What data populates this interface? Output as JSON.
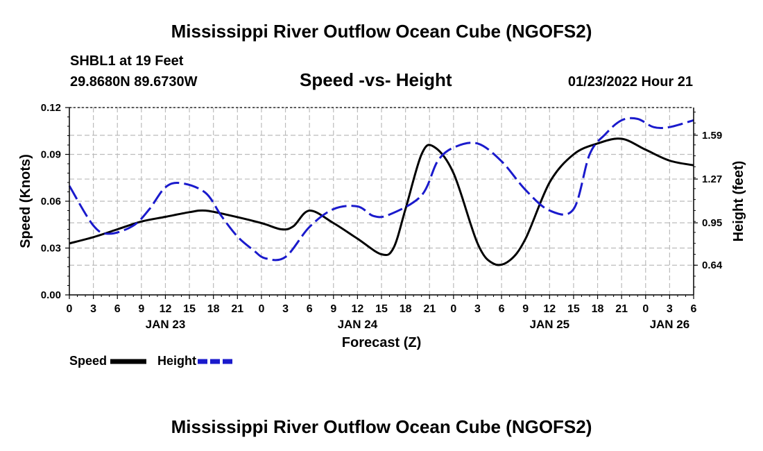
{
  "page": {
    "title_top": "Mississippi River Outflow Ocean Cube (NGOFS2)",
    "title_bottom": "Mississippi River Outflow Ocean Cube (NGOFS2)",
    "station": "SHBL1 at 19 Feet",
    "coordinates": "29.8680N  89.6730W",
    "chart_title": "Speed -vs- Height",
    "timestamp": "01/23/2022 Hour 21"
  },
  "chart_data": {
    "type": "line",
    "title": "Speed -vs- Height",
    "xlabel": "Forecast (Z)",
    "ylabel": "Speed (Knots)",
    "y2label": "Height (feet)",
    "x_hours": [
      0,
      3,
      6,
      9,
      12,
      15,
      18,
      21,
      24,
      27,
      30,
      33,
      36,
      39,
      42,
      45,
      48,
      51,
      54,
      57,
      60,
      63,
      66,
      69,
      72,
      75,
      78
    ],
    "x_tick_labels": [
      "0",
      "3",
      "6",
      "9",
      "12",
      "15",
      "18",
      "21",
      "0",
      "3",
      "6",
      "9",
      "12",
      "15",
      "18",
      "21",
      "0",
      "3",
      "6",
      "9",
      "12",
      "15",
      "18",
      "21",
      "0",
      "3",
      "6"
    ],
    "date_labels": [
      {
        "hour": 12,
        "label": "JAN 23"
      },
      {
        "hour": 36,
        "label": "JAN 24"
      },
      {
        "hour": 60,
        "label": "JAN 25"
      },
      {
        "hour": 75,
        "label": "JAN 26"
      }
    ],
    "ylim": [
      0,
      0.12
    ],
    "y_ticks": [
      0.0,
      0.03,
      0.06,
      0.09,
      0.12
    ],
    "y_tick_labels": [
      "0.00",
      "0.03",
      "0.06",
      "0.09",
      "0.12"
    ],
    "y2lim": [
      0.423,
      1.793
    ],
    "y2_ticks": [
      0.64,
      0.95,
      1.27,
      1.59
    ],
    "y2_tick_labels": [
      "0.64",
      "0.95",
      "1.27",
      "1.59"
    ],
    "grid": true,
    "series": [
      {
        "name": "Speed",
        "axis": "left",
        "color": "#000000",
        "dash": "solid",
        "x": [
          0,
          3,
          6,
          9,
          12,
          15,
          17,
          20,
          24,
          26.5,
          28,
          30,
          33,
          36,
          39,
          40.5,
          42,
          44,
          45.5,
          48,
          51,
          53,
          55,
          57,
          60,
          63,
          66,
          69,
          72,
          75,
          78
        ],
        "values": [
          0.033,
          0.037,
          0.042,
          0.047,
          0.05,
          0.053,
          0.054,
          0.051,
          0.046,
          0.042,
          0.044,
          0.054,
          0.046,
          0.036,
          0.026,
          0.03,
          0.055,
          0.09,
          0.095,
          0.078,
          0.033,
          0.02,
          0.022,
          0.036,
          0.072,
          0.09,
          0.097,
          0.1,
          0.093,
          0.086,
          0.083
        ]
      },
      {
        "name": "Height",
        "axis": "right",
        "color": "#1a1acc",
        "dash": "dashed",
        "x": [
          0,
          3,
          5,
          8,
          10,
          12,
          14,
          17,
          19,
          21,
          23,
          24.5,
          27,
          30,
          33,
          36,
          38,
          40,
          44,
          46,
          48,
          51,
          54,
          57,
          60,
          63,
          65,
          67,
          69,
          71,
          73,
          75,
          78
        ],
        "values": [
          1.22,
          0.93,
          0.87,
          0.93,
          1.05,
          1.21,
          1.24,
          1.17,
          1.0,
          0.85,
          0.75,
          0.69,
          0.7,
          0.92,
          1.05,
          1.07,
          1.0,
          1.01,
          1.15,
          1.4,
          1.5,
          1.53,
          1.4,
          1.19,
          1.04,
          1.05,
          1.45,
          1.6,
          1.7,
          1.71,
          1.65,
          1.65,
          1.7
        ]
      }
    ],
    "legend": [
      {
        "label": "Speed",
        "color": "#000000",
        "dash": "solid"
      },
      {
        "label": "Height",
        "color": "#1a1acc",
        "dash": "dashed"
      }
    ],
    "legend_position": "bottom-left"
  }
}
